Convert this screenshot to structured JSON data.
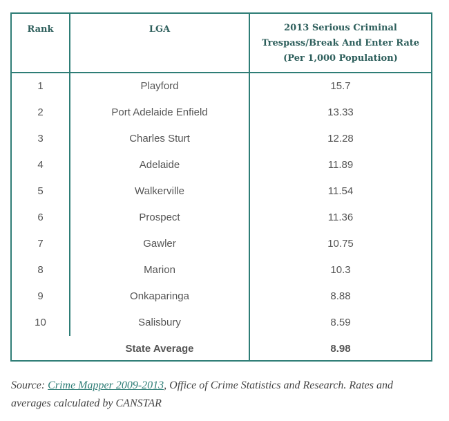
{
  "table": {
    "headers": {
      "rank": "Rank",
      "lga": "LGA",
      "rate_line1": "2013 Serious Criminal",
      "rate_line2": "Trespass/Break And Enter Rate",
      "rate_line3": "(Per 1,000 Population)"
    },
    "rows": [
      {
        "rank": "1",
        "lga": "Playford",
        "rate": "15.7"
      },
      {
        "rank": "2",
        "lga": "Port Adelaide Enfield",
        "rate": "13.33"
      },
      {
        "rank": "3",
        "lga": "Charles Sturt",
        "rate": "12.28"
      },
      {
        "rank": "4",
        "lga": "Adelaide",
        "rate": "11.89"
      },
      {
        "rank": "5",
        "lga": "Walkerville",
        "rate": "11.54"
      },
      {
        "rank": "6",
        "lga": "Prospect",
        "rate": "11.36"
      },
      {
        "rank": "7",
        "lga": "Gawler",
        "rate": "10.75"
      },
      {
        "rank": "8",
        "lga": "Marion",
        "rate": "10.3"
      },
      {
        "rank": "9",
        "lga": "Onkaparinga",
        "rate": "8.88"
      },
      {
        "rank": "10",
        "lga": "Salisbury",
        "rate": "8.59"
      }
    ],
    "average": {
      "label": "State Average",
      "rate": "8.98"
    }
  },
  "source": {
    "prefix": "Source: ",
    "link_text": "Crime Mapper 2009-2013",
    "suffix": ", Office of Crime Statistics and Research. Rates and averages calculated by CANSTAR"
  },
  "colors": {
    "accent": "#2e7d76",
    "text": "#555555"
  }
}
